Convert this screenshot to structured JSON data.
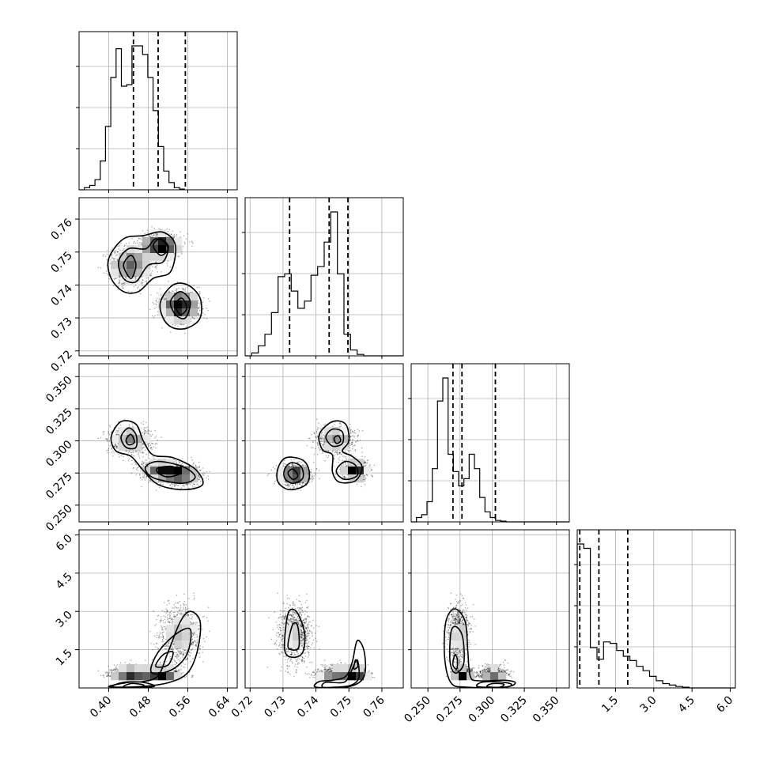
{
  "chart_data": {
    "type": "corner",
    "grid": true,
    "parameters": [
      {
        "range": [
          0.34,
          0.66
        ],
        "ticks": [
          0.4,
          0.48,
          0.56,
          0.64
        ],
        "tick_labels": [
          "0.40",
          "0.48",
          "0.56",
          "0.64"
        ],
        "quantiles": [
          0.45,
          0.5,
          0.555
        ],
        "hist": {
          "edges_start": 0.34,
          "bin_width": 0.0107,
          "counts": [
            0,
            0.015,
            0.03,
            0.07,
            0.2,
            0.44,
            0.78,
            0.98,
            0.72,
            0.73,
            1.0,
            1.0,
            0.94,
            0.78,
            0.55,
            0.3,
            0.13,
            0.05,
            0.015,
            0.005
          ]
        }
      },
      {
        "range": [
          0.7185,
          0.7665
        ],
        "ticks": [
          0.72,
          0.73,
          0.74,
          0.75,
          0.76
        ],
        "tick_labels": [
          "0.72",
          "0.73",
          "0.74",
          "0.75",
          "0.76"
        ],
        "quantiles": [
          0.732,
          0.744,
          0.7497
        ],
        "hist": {
          "edges_start": 0.7185,
          "bin_width": 0.002,
          "counts": [
            0,
            0.02,
            0.07,
            0.15,
            0.3,
            0.55,
            0.57,
            0.45,
            0.33,
            0.38,
            0.56,
            0.62,
            0.79,
            1.0,
            0.57,
            0.15,
            0.04,
            0.01,
            0,
            0,
            0,
            0,
            0,
            0
          ]
        }
      },
      {
        "range": [
          0.237,
          0.36
        ],
        "ticks": [
          0.25,
          0.275,
          0.3,
          0.325,
          0.35
        ],
        "tick_labels": [
          "0.250",
          "0.275",
          "0.300",
          "0.325",
          "0.350"
        ],
        "quantiles": [
          0.2695,
          0.2765,
          0.3025
        ],
        "hist": {
          "edges_start": 0.237,
          "bin_width": 0.0041,
          "counts": [
            0,
            0.03,
            0.05,
            0.14,
            0.37,
            0.84,
            1.0,
            0.47,
            0.35,
            0.25,
            0.3,
            0.47,
            0.37,
            0.17,
            0.07,
            0.03,
            0.01,
            0.005,
            0,
            0,
            0,
            0,
            0,
            0,
            0,
            0,
            0,
            0,
            0,
            0
          ]
        }
      },
      {
        "range": [
          0.0,
          6.2
        ],
        "ticks": [
          1.5,
          3.0,
          4.5,
          6.0
        ],
        "tick_labels": [
          "1.5",
          "3.0",
          "4.5",
          "6.0"
        ],
        "quantiles": [
          0.1,
          0.85,
          1.98
        ],
        "hist": {
          "edges_start": 0.0,
          "bin_width": 0.258,
          "counts": [
            1.0,
            0.97,
            0.28,
            0.2,
            0.32,
            0.31,
            0.26,
            0.22,
            0.19,
            0.15,
            0.12,
            0.08,
            0.05,
            0.03,
            0.02,
            0.01,
            0.005,
            0,
            0,
            0,
            0,
            0,
            0,
            0
          ]
        }
      }
    ],
    "clusters": [
      {
        "center": [
          0.445,
          0.746,
          0.301,
          0.4
        ],
        "sd": [
          0.022,
          0.0028,
          0.0055,
          0.2
        ],
        "weight": 0.3
      },
      {
        "center": [
          0.505,
          0.752,
          0.277,
          0.4
        ],
        "sd": [
          0.02,
          0.0019,
          0.0035,
          0.18
        ],
        "weight": 0.32
      },
      {
        "center": [
          0.545,
          0.7335,
          0.274,
          2.1
        ],
        "sd": [
          0.02,
          0.0024,
          0.004,
          0.55
        ],
        "weight": 0.38
      }
    ],
    "contours": {
      "0-1": [
        [
          [
            0.4,
            0.748
          ],
          [
            0.43,
            0.754
          ],
          [
            0.47,
            0.755
          ],
          [
            0.51,
            0.756
          ],
          [
            0.535,
            0.752
          ],
          [
            0.525,
            0.744
          ],
          [
            0.49,
            0.742
          ],
          [
            0.46,
            0.738
          ],
          [
            0.43,
            0.738
          ],
          [
            0.405,
            0.742
          ]
        ],
        [
          [
            0.42,
            0.747
          ],
          [
            0.44,
            0.751
          ],
          [
            0.475,
            0.751
          ],
          [
            0.495,
            0.754
          ],
          [
            0.52,
            0.752
          ],
          [
            0.51,
            0.747
          ],
          [
            0.48,
            0.746
          ],
          [
            0.455,
            0.741
          ],
          [
            0.43,
            0.742
          ]
        ],
        [
          [
            0.43,
            0.746
          ],
          [
            0.445,
            0.749
          ],
          [
            0.455,
            0.746
          ],
          [
            0.445,
            0.742
          ]
        ],
        [
          [
            0.49,
            0.752
          ],
          [
            0.505,
            0.754
          ],
          [
            0.52,
            0.751
          ],
          [
            0.505,
            0.749
          ]
        ],
        [
          [
            0.505,
            0.735
          ],
          [
            0.53,
            0.74
          ],
          [
            0.56,
            0.74
          ],
          [
            0.585,
            0.736
          ],
          [
            0.585,
            0.73
          ],
          [
            0.56,
            0.727
          ],
          [
            0.53,
            0.727
          ],
          [
            0.51,
            0.73
          ]
        ],
        [
          [
            0.525,
            0.735
          ],
          [
            0.545,
            0.738
          ],
          [
            0.565,
            0.735
          ],
          [
            0.555,
            0.73
          ],
          [
            0.535,
            0.731
          ]
        ],
        [
          [
            0.535,
            0.734
          ],
          [
            0.548,
            0.736
          ],
          [
            0.558,
            0.733
          ],
          [
            0.545,
            0.731
          ]
        ]
      ],
      "0-2": [
        [
          [
            0.405,
            0.303
          ],
          [
            0.425,
            0.315
          ],
          [
            0.455,
            0.313
          ],
          [
            0.47,
            0.3
          ],
          [
            0.49,
            0.289
          ],
          [
            0.53,
            0.287
          ],
          [
            0.575,
            0.278
          ],
          [
            0.59,
            0.266
          ],
          [
            0.55,
            0.262
          ],
          [
            0.5,
            0.266
          ],
          [
            0.47,
            0.277
          ],
          [
            0.445,
            0.288
          ],
          [
            0.415,
            0.292
          ]
        ],
        [
          [
            0.425,
            0.303
          ],
          [
            0.44,
            0.31
          ],
          [
            0.455,
            0.305
          ],
          [
            0.455,
            0.295
          ],
          [
            0.435,
            0.295
          ]
        ],
        [
          [
            0.435,
            0.301
          ],
          [
            0.445,
            0.305
          ],
          [
            0.452,
            0.299
          ],
          [
            0.44,
            0.297
          ]
        ],
        [
          [
            0.475,
            0.28
          ],
          [
            0.5,
            0.284
          ],
          [
            0.55,
            0.28
          ],
          [
            0.575,
            0.272
          ],
          [
            0.55,
            0.267
          ],
          [
            0.5,
            0.27
          ],
          [
            0.48,
            0.274
          ]
        ],
        [
          [
            0.5,
            0.279
          ],
          [
            0.53,
            0.28
          ],
          [
            0.545,
            0.275
          ],
          [
            0.52,
            0.272
          ],
          [
            0.5,
            0.275
          ]
        ]
      ],
      "1-2": [
        [
          [
            0.7285,
            0.279
          ],
          [
            0.731,
            0.287
          ],
          [
            0.736,
            0.285
          ],
          [
            0.738,
            0.276
          ],
          [
            0.737,
            0.266
          ],
          [
            0.732,
            0.262
          ],
          [
            0.7285,
            0.268
          ]
        ],
        [
          [
            0.7305,
            0.278
          ],
          [
            0.7325,
            0.283
          ],
          [
            0.7355,
            0.28
          ],
          [
            0.736,
            0.271
          ],
          [
            0.733,
            0.267
          ],
          [
            0.7305,
            0.271
          ]
        ],
        [
          [
            0.7315,
            0.275
          ],
          [
            0.733,
            0.278
          ],
          [
            0.7345,
            0.273
          ],
          [
            0.733,
            0.27
          ]
        ],
        [
          [
            0.741,
            0.305
          ],
          [
            0.745,
            0.315
          ],
          [
            0.749,
            0.313
          ],
          [
            0.75,
            0.3
          ],
          [
            0.748,
            0.292
          ],
          [
            0.751,
            0.288
          ],
          [
            0.754,
            0.28
          ],
          [
            0.752,
            0.269
          ],
          [
            0.747,
            0.268
          ],
          [
            0.745,
            0.276
          ],
          [
            0.745,
            0.289
          ],
          [
            0.742,
            0.293
          ]
        ],
        [
          [
            0.743,
            0.303
          ],
          [
            0.745,
            0.309
          ],
          [
            0.748,
            0.307
          ],
          [
            0.748,
            0.298
          ],
          [
            0.745,
            0.296
          ]
        ],
        [
          [
            0.7455,
            0.302
          ],
          [
            0.7468,
            0.304
          ],
          [
            0.7475,
            0.3
          ],
          [
            0.7462,
            0.298
          ]
        ],
        [
          [
            0.7465,
            0.279
          ],
          [
            0.749,
            0.284
          ],
          [
            0.752,
            0.281
          ],
          [
            0.7525,
            0.273
          ],
          [
            0.749,
            0.27
          ],
          [
            0.7465,
            0.274
          ]
        ]
      ],
      "0-3": [
        [
          [
            0.4,
            0.05
          ],
          [
            0.44,
            0.22
          ],
          [
            0.47,
            0.25
          ],
          [
            0.5,
            0.48
          ],
          [
            0.52,
            1.4
          ],
          [
            0.545,
            2.6
          ],
          [
            0.565,
            3.0
          ],
          [
            0.585,
            2.6
          ],
          [
            0.58,
            1.5
          ],
          [
            0.56,
            0.6
          ],
          [
            0.52,
            0.2
          ],
          [
            0.46,
            0.05
          ]
        ],
        [
          [
            0.485,
            0.7
          ],
          [
            0.5,
            1.4
          ],
          [
            0.535,
            2.1
          ],
          [
            0.565,
            2.3
          ],
          [
            0.56,
            1.4
          ],
          [
            0.535,
            0.8
          ],
          [
            0.5,
            0.55
          ]
        ],
        [
          [
            0.495,
            0.85
          ],
          [
            0.51,
            1.3
          ],
          [
            0.53,
            1.4
          ],
          [
            0.52,
            0.9
          ]
        ],
        [
          [
            0.41,
            0.03
          ],
          [
            0.43,
            0.22
          ],
          [
            0.47,
            0.22
          ],
          [
            0.49,
            0.05
          ]
        ],
        [
          [
            0.43,
            0.03
          ],
          [
            0.445,
            0.17
          ],
          [
            0.47,
            0.12
          ],
          [
            0.465,
            0.03
          ]
        ]
      ],
      "1-3": [
        [
          [
            0.7305,
            1.5
          ],
          [
            0.7315,
            2.9
          ],
          [
            0.734,
            3.0
          ],
          [
            0.7365,
            2.2
          ],
          [
            0.736,
            1.4
          ],
          [
            0.733,
            1.2
          ]
        ],
        [
          [
            0.7315,
            1.7
          ],
          [
            0.733,
            2.5
          ],
          [
            0.7345,
            2.4
          ],
          [
            0.7348,
            1.6
          ],
          [
            0.7325,
            1.5
          ]
        ],
        [
          [
            0.74,
            0.03
          ],
          [
            0.741,
            0.25
          ],
          [
            0.745,
            0.3
          ],
          [
            0.749,
            0.45
          ],
          [
            0.751,
            1.0
          ],
          [
            0.7525,
            1.85
          ],
          [
            0.7545,
            1.5
          ],
          [
            0.755,
            0.7
          ],
          [
            0.7535,
            0.25
          ],
          [
            0.749,
            0.03
          ]
        ],
        [
          [
            0.742,
            0.03
          ],
          [
            0.743,
            0.22
          ],
          [
            0.7485,
            0.22
          ],
          [
            0.7505,
            0.6
          ],
          [
            0.7525,
            1.1
          ],
          [
            0.753,
            0.4
          ],
          [
            0.7505,
            0.1
          ],
          [
            0.746,
            0.03
          ]
        ],
        [
          [
            0.7515,
            0.75
          ],
          [
            0.752,
            1.1
          ],
          [
            0.7527,
            0.85
          ]
        ]
      ],
      "2-3": [
        [
          [
            0.263,
            1.2
          ],
          [
            0.264,
            2.6
          ],
          [
            0.271,
            3.1
          ],
          [
            0.279,
            2.6
          ],
          [
            0.281,
            1.5
          ],
          [
            0.283,
            0.45
          ],
          [
            0.29,
            0.28
          ],
          [
            0.31,
            0.3
          ],
          [
            0.318,
            0.2
          ],
          [
            0.31,
            0.03
          ],
          [
            0.28,
            0.03
          ],
          [
            0.268,
            0.2
          ]
        ],
        [
          [
            0.267,
            1.2
          ],
          [
            0.268,
            2.2
          ],
          [
            0.272,
            2.4
          ],
          [
            0.277,
            2.0
          ],
          [
            0.278,
            1.0
          ],
          [
            0.273,
            0.6
          ],
          [
            0.269,
            0.7
          ]
        ],
        [
          [
            0.2695,
            0.9
          ],
          [
            0.271,
            1.3
          ],
          [
            0.273,
            1.1
          ],
          [
            0.2725,
            0.75
          ]
        ],
        [
          [
            0.289,
            0.05
          ],
          [
            0.292,
            0.22
          ],
          [
            0.305,
            0.24
          ],
          [
            0.315,
            0.15
          ],
          [
            0.31,
            0.03
          ]
        ],
        [
          [
            0.296,
            0.05
          ],
          [
            0.3,
            0.17
          ],
          [
            0.309,
            0.15
          ],
          [
            0.306,
            0.03
          ]
        ]
      ]
    }
  }
}
